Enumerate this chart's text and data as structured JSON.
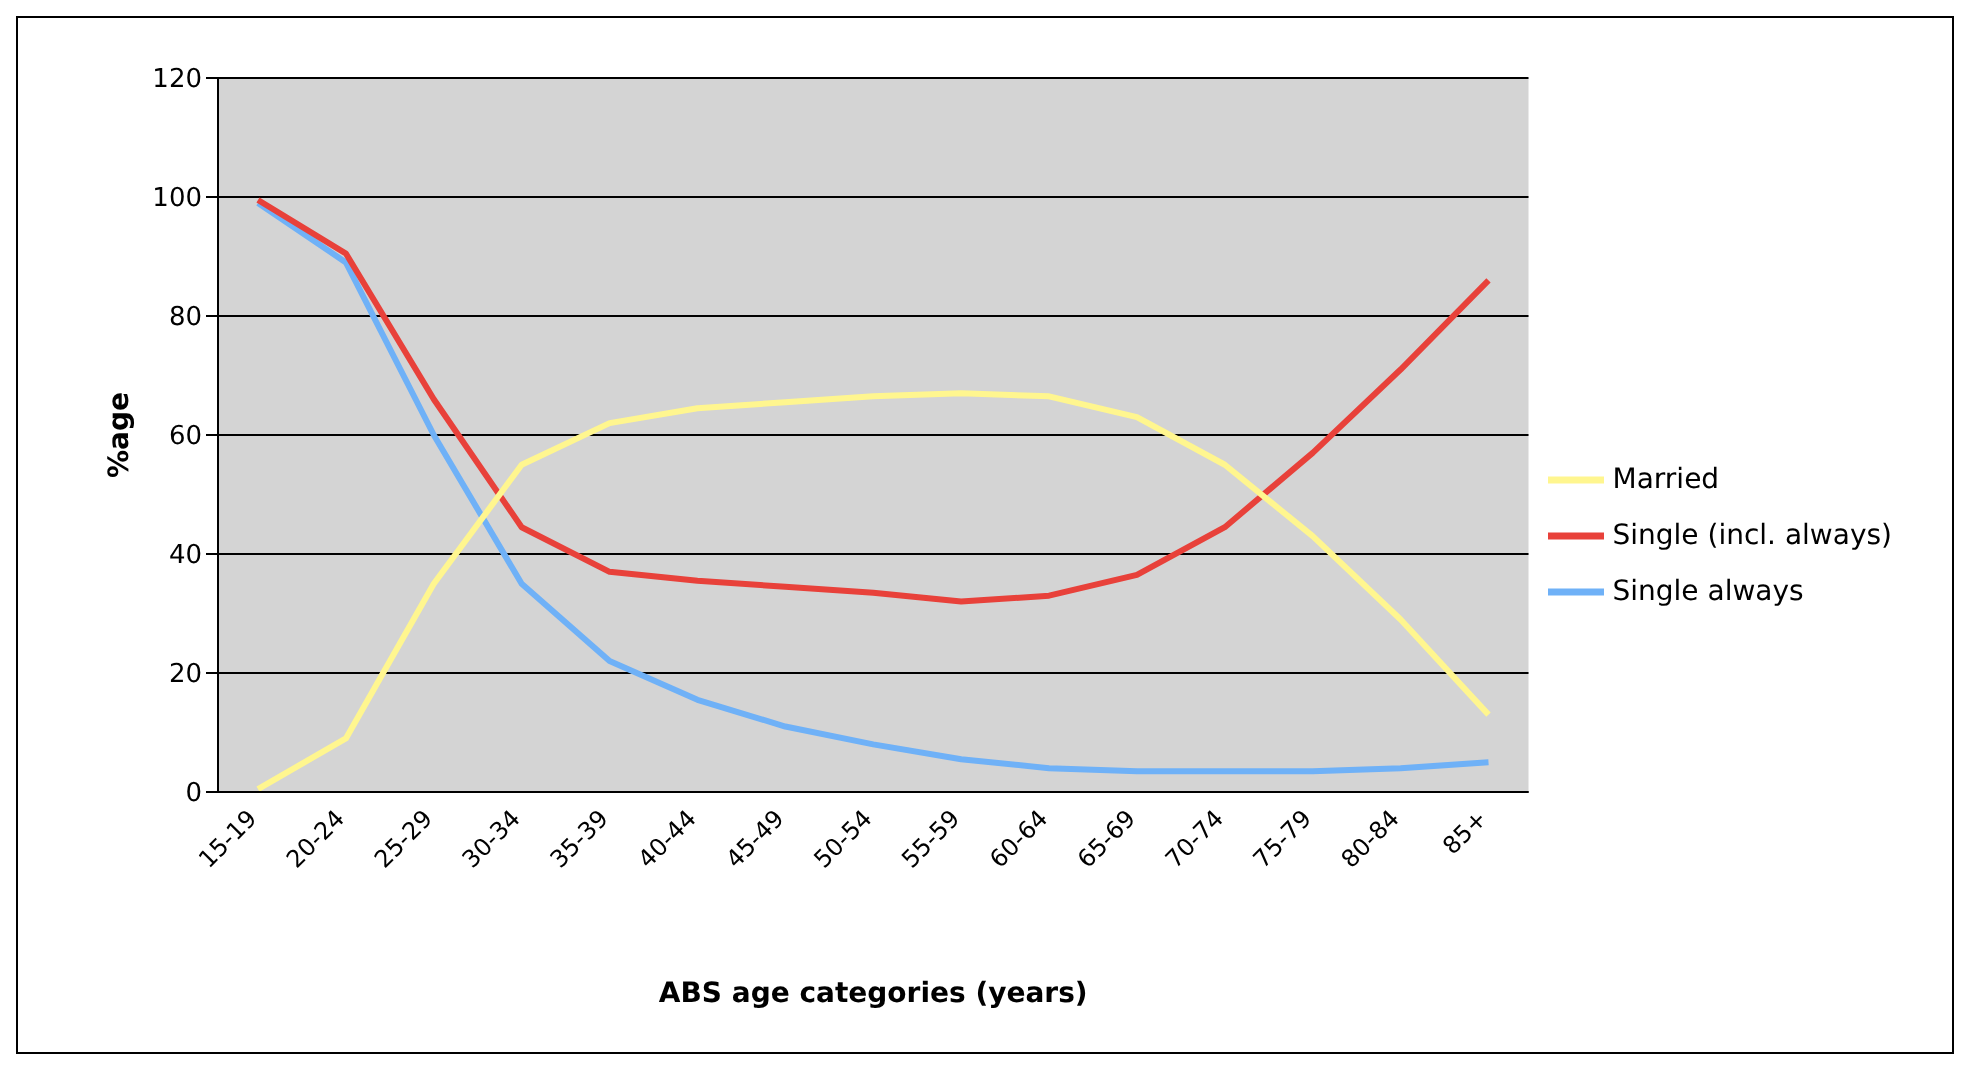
{
  "chart_data": {
    "type": "line",
    "xlabel": "ABS age categories (years)",
    "ylabel": "%age",
    "categories": [
      "15-19",
      "20-24",
      "25-29",
      "30-34",
      "35-39",
      "40-44",
      "45-49",
      "50-54",
      "55-59",
      "60-64",
      "65-69",
      "70-74",
      "75-79",
      "80-84",
      "85+"
    ],
    "series": [
      {
        "name": "Single always",
        "color": "#6fb1f7",
        "values": [
          99,
          89,
          60,
          35,
          22,
          15.5,
          11,
          8,
          5.5,
          4,
          3.5,
          3.5,
          3.5,
          4,
          5
        ]
      },
      {
        "name": "Single (incl. always)",
        "color": "#e8413a",
        "values": [
          99.5,
          90.5,
          66,
          44.5,
          37,
          35.5,
          34.5,
          33.5,
          32,
          33,
          36.5,
          44.5,
          57,
          71,
          86
        ]
      },
      {
        "name": "Married",
        "color": "#fff68f",
        "values": [
          0.5,
          9,
          35,
          55,
          62,
          64.5,
          65.5,
          66.5,
          67,
          66.5,
          63,
          55,
          43,
          29,
          13
        ]
      }
    ],
    "ylim": [
      0,
      120
    ],
    "yticks": [
      0,
      20,
      40,
      60,
      80,
      100,
      120
    ],
    "grid": "y",
    "legend": "right",
    "marker": "none",
    "line_style": "solid"
  }
}
